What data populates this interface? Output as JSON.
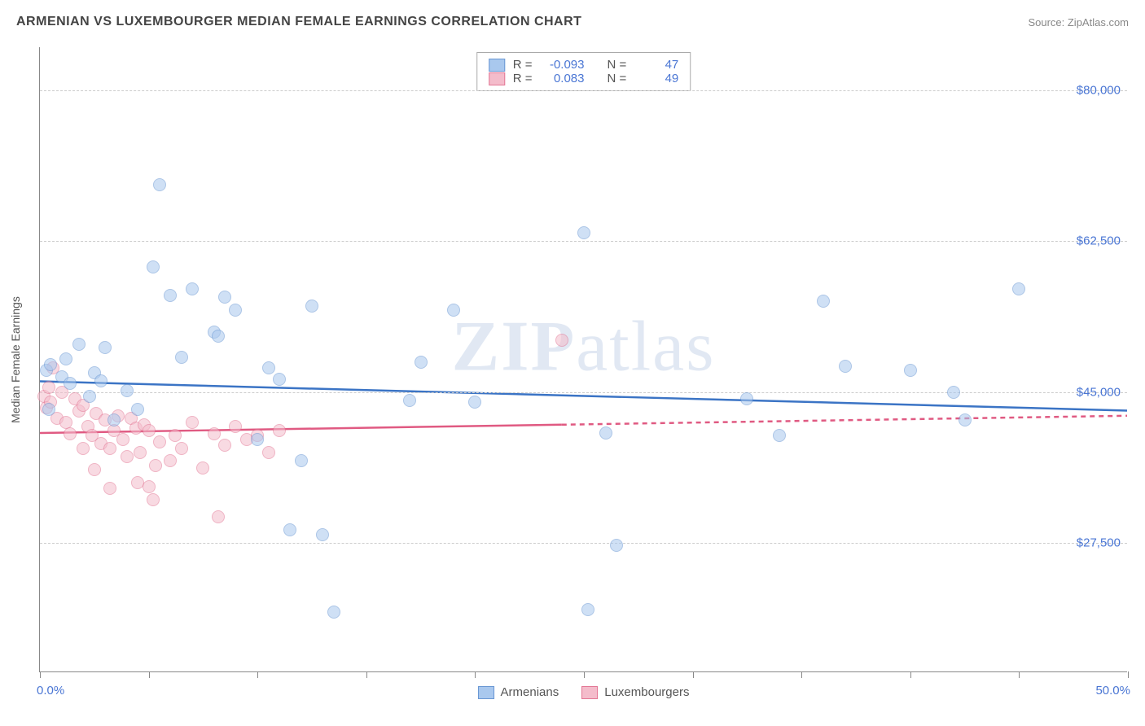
{
  "title": "ARMENIAN VS LUXEMBOURGER MEDIAN FEMALE EARNINGS CORRELATION CHART",
  "source_label": "Source: ZipAtlas.com",
  "watermark": {
    "part1": "ZIP",
    "part2": "atlas"
  },
  "y_axis_title": "Median Female Earnings",
  "chart": {
    "type": "scatter",
    "background_color": "#ffffff",
    "grid_color": "#cccccc",
    "grid_dash": "4,4",
    "axis_line_color": "#888888",
    "point_radius": 8,
    "point_opacity": 0.55,
    "xlim": [
      0,
      50
    ],
    "ylim": [
      12500,
      85000
    ],
    "x_ticks": [
      0,
      5,
      10,
      15,
      20,
      25,
      30,
      35,
      40,
      45,
      50
    ],
    "x_tick_labels": {
      "min": "0.0%",
      "max": "50.0%"
    },
    "y_ticks": [
      27500,
      45000,
      62500,
      80000
    ],
    "y_tick_labels": [
      "$27,500",
      "$45,000",
      "$62,500",
      "$80,000"
    ],
    "y_label_color": "#4a76d4",
    "x_label_color": "#4a76d4",
    "tick_label_fontsize": 15,
    "title_fontsize": 16,
    "title_color": "#444444",
    "source_color": "#888888"
  },
  "series": {
    "armenians": {
      "label": "Armenians",
      "fill_color": "#a9c8ee",
      "stroke_color": "#6997d3",
      "trend_color": "#3b74c5",
      "trend_width": 2.5,
      "trend_y_at_xmin": 46200,
      "trend_y_at_xmax": 42800,
      "trend_dash_from_x": null,
      "R": "-0.093",
      "N": "47",
      "points": [
        [
          0.3,
          47500
        ],
        [
          0.5,
          48200
        ],
        [
          0.4,
          43000
        ],
        [
          1.0,
          46800
        ],
        [
          1.2,
          48800
        ],
        [
          1.4,
          46000
        ],
        [
          1.8,
          50500
        ],
        [
          2.5,
          47200
        ],
        [
          2.3,
          44500
        ],
        [
          2.8,
          46300
        ],
        [
          3.0,
          50200
        ],
        [
          3.4,
          41800
        ],
        [
          4.0,
          45200
        ],
        [
          4.5,
          43000
        ],
        [
          5.5,
          69000
        ],
        [
          5.2,
          59500
        ],
        [
          6.0,
          56200
        ],
        [
          6.5,
          49000
        ],
        [
          7.0,
          57000
        ],
        [
          8.0,
          52000
        ],
        [
          8.5,
          56000
        ],
        [
          8.2,
          51500
        ],
        [
          9.0,
          54500
        ],
        [
          10.0,
          39500
        ],
        [
          10.5,
          47800
        ],
        [
          11.0,
          46500
        ],
        [
          11.5,
          29000
        ],
        [
          12.0,
          37000
        ],
        [
          12.5,
          55000
        ],
        [
          13.0,
          28500
        ],
        [
          13.5,
          19500
        ],
        [
          17.0,
          44000
        ],
        [
          17.5,
          48500
        ],
        [
          19.0,
          54500
        ],
        [
          20.0,
          43800
        ],
        [
          25.0,
          63500
        ],
        [
          25.2,
          19800
        ],
        [
          26.0,
          40300
        ],
        [
          26.5,
          27200
        ],
        [
          32.5,
          44200
        ],
        [
          34.0,
          40000
        ],
        [
          36.0,
          55500
        ],
        [
          37.0,
          48000
        ],
        [
          40.0,
          47500
        ],
        [
          42.0,
          45000
        ],
        [
          42.5,
          41800
        ],
        [
          45.0,
          57000
        ]
      ]
    },
    "luxembourgers": {
      "label": "Luxembourgers",
      "fill_color": "#f4bccb",
      "stroke_color": "#e37795",
      "trend_color": "#e05a82",
      "trend_width": 2.5,
      "trend_y_at_xmin": 40200,
      "trend_y_at_xmax": 42200,
      "trend_dash_from_x": 24,
      "R": "0.083",
      "N": "49",
      "points": [
        [
          0.2,
          44500
        ],
        [
          0.3,
          43200
        ],
        [
          0.4,
          45500
        ],
        [
          0.5,
          43800
        ],
        [
          0.6,
          47800
        ],
        [
          0.8,
          42000
        ],
        [
          1.0,
          45000
        ],
        [
          1.2,
          41500
        ],
        [
          1.4,
          40200
        ],
        [
          1.6,
          44200
        ],
        [
          1.8,
          42800
        ],
        [
          2.0,
          43500
        ],
        [
          2.0,
          38500
        ],
        [
          2.2,
          41000
        ],
        [
          2.4,
          40000
        ],
        [
          2.6,
          42500
        ],
        [
          2.8,
          39000
        ],
        [
          2.5,
          36000
        ],
        [
          3.0,
          41800
        ],
        [
          3.2,
          38500
        ],
        [
          3.4,
          40500
        ],
        [
          3.6,
          42200
        ],
        [
          3.8,
          39500
        ],
        [
          3.2,
          33800
        ],
        [
          4.0,
          37500
        ],
        [
          4.2,
          42000
        ],
        [
          4.4,
          40800
        ],
        [
          4.6,
          38000
        ],
        [
          4.8,
          41200
        ],
        [
          4.5,
          34500
        ],
        [
          5.0,
          40500
        ],
        [
          5.2,
          32500
        ],
        [
          5.3,
          36500
        ],
        [
          5.5,
          39200
        ],
        [
          5.0,
          34000
        ],
        [
          6.0,
          37000
        ],
        [
          6.2,
          40000
        ],
        [
          6.5,
          38500
        ],
        [
          7.0,
          41500
        ],
        [
          7.5,
          36200
        ],
        [
          8.0,
          40200
        ],
        [
          8.5,
          38800
        ],
        [
          8.2,
          30500
        ],
        [
          9.0,
          41000
        ],
        [
          9.5,
          39500
        ],
        [
          10.0,
          40000
        ],
        [
          10.5,
          38000
        ],
        [
          11.0,
          40500
        ],
        [
          24.0,
          51000
        ]
      ]
    }
  },
  "stats_legend": {
    "R_label": "R =",
    "N_label": "N ="
  }
}
